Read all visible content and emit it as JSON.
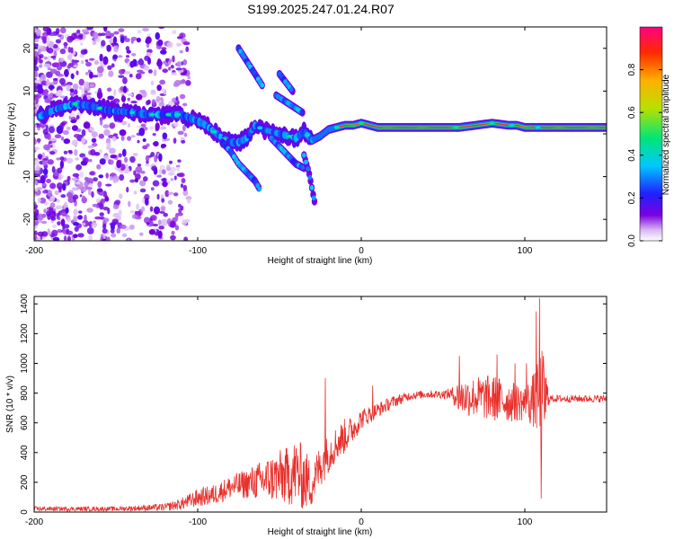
{
  "title": "S199.2025.247.01.24.R07",
  "chart_data": [
    {
      "type": "heatmap",
      "name": "spectrogram",
      "xlabel": "Height of straight line (km)",
      "ylabel": "Frequency (Hz)",
      "xlim": [
        -200,
        150
      ],
      "ylim": [
        -25,
        25
      ],
      "xticks": [
        -200,
        -100,
        0,
        100
      ],
      "yticks": [
        -20,
        -10,
        0,
        10,
        20
      ],
      "colorbar": {
        "label": "Normalized spectral amplitude",
        "range": [
          0.0,
          1.0
        ],
        "ticks": [
          0.0,
          0.2,
          0.4,
          0.6,
          0.8
        ]
      },
      "ridge": {
        "x": [
          -197,
          -185,
          -175,
          -165,
          -155,
          -140,
          -130,
          -120,
          -110,
          -100,
          -95,
          -90,
          -85,
          -80,
          -75,
          -70,
          -65,
          -60,
          -55,
          -50,
          -45,
          -40,
          -35,
          -30,
          -25,
          -20,
          -15,
          -10,
          -5,
          0,
          5,
          10,
          20,
          30,
          40,
          50,
          60,
          70,
          80,
          90,
          95,
          100,
          105,
          110,
          120,
          130,
          140,
          150
        ],
        "y": [
          4,
          6,
          7,
          6.5,
          5.5,
          5,
          4.5,
          4.5,
          4.5,
          3,
          2,
          0.5,
          -1,
          -2,
          -2,
          -1,
          2,
          1,
          0.5,
          0,
          -0.5,
          -1,
          0.5,
          -1.5,
          -0.5,
          1,
          1.5,
          2,
          2,
          2.5,
          2,
          1.5,
          1.5,
          1.5,
          1.5,
          1.5,
          1.5,
          2,
          2.5,
          2,
          2,
          1.5,
          1.5,
          1.5,
          1.5,
          1.5,
          1.5,
          1.5
        ]
      },
      "branches": [
        {
          "x": [
            -85,
            -80,
            -75,
            -70,
            -65,
            -62
          ],
          "y": [
            -2,
            -4,
            -7,
            -9,
            -11,
            -13
          ]
        },
        {
          "x": [
            -55,
            -50,
            -45,
            -40,
            -35
          ],
          "y": [
            -1,
            -3,
            -5,
            -7,
            -8
          ]
        },
        {
          "x": [
            -35,
            -32,
            -30,
            -28
          ],
          "y": [
            -5,
            -9,
            -13,
            -17
          ]
        },
        {
          "x": [
            -75,
            -70,
            -65,
            -60
          ],
          "y": [
            20,
            17,
            14,
            11
          ]
        },
        {
          "x": [
            -52,
            -48,
            -44,
            -40,
            -36
          ],
          "y": [
            9,
            8,
            7,
            6,
            5
          ]
        },
        {
          "x": [
            -50,
            -46,
            -42
          ],
          "y": [
            14,
            12,
            10
          ]
        }
      ]
    },
    {
      "type": "line",
      "name": "snr",
      "xlabel": "Height of straight line (km)",
      "ylabel": "SNR (10 * v/v)",
      "xlim": [
        -200,
        150
      ],
      "ylim": [
        0,
        1450
      ],
      "xticks": [
        -200,
        -100,
        0,
        100
      ],
      "yticks": [
        0,
        200,
        400,
        600,
        800,
        1000,
        1200,
        1400
      ],
      "color": "#e8302c",
      "envelope": {
        "x": [
          -200,
          -150,
          -120,
          -110,
          -100,
          -90,
          -80,
          -70,
          -60,
          -50,
          -45,
          -40,
          -35,
          -30,
          -25,
          -20,
          -15,
          -10,
          -5,
          0,
          5,
          10,
          20,
          30,
          40,
          50,
          55,
          60,
          70,
          80,
          90,
          100,
          105,
          108,
          110,
          112,
          115,
          120,
          130,
          140,
          150
        ],
        "base": [
          20,
          20,
          30,
          50,
          90,
          110,
          160,
          180,
          200,
          220,
          220,
          250,
          200,
          170,
          300,
          380,
          450,
          500,
          550,
          620,
          650,
          680,
          740,
          780,
          790,
          790,
          790,
          760,
          760,
          750,
          730,
          720,
          730,
          730,
          730,
          740,
          760,
          760,
          760,
          760,
          760
        ],
        "noise": [
          15,
          15,
          25,
          40,
          60,
          70,
          80,
          100,
          140,
          180,
          200,
          230,
          220,
          150,
          150,
          130,
          120,
          120,
          90,
          70,
          60,
          50,
          40,
          30,
          25,
          30,
          40,
          120,
          140,
          160,
          140,
          120,
          180,
          250,
          350,
          280,
          25,
          25,
          25,
          25,
          25
        ]
      },
      "spikes": [
        {
          "x": -22,
          "y": 900
        },
        {
          "x": 7,
          "y": 850
        },
        {
          "x": 60,
          "y": 1050
        },
        {
          "x": 83,
          "y": 1060
        },
        {
          "x": 94,
          "y": 1000
        },
        {
          "x": 101,
          "y": 1000
        },
        {
          "x": 107,
          "y": 1350
        },
        {
          "x": 109,
          "y": 1440
        },
        {
          "x": 110,
          "y": 90
        }
      ]
    }
  ]
}
